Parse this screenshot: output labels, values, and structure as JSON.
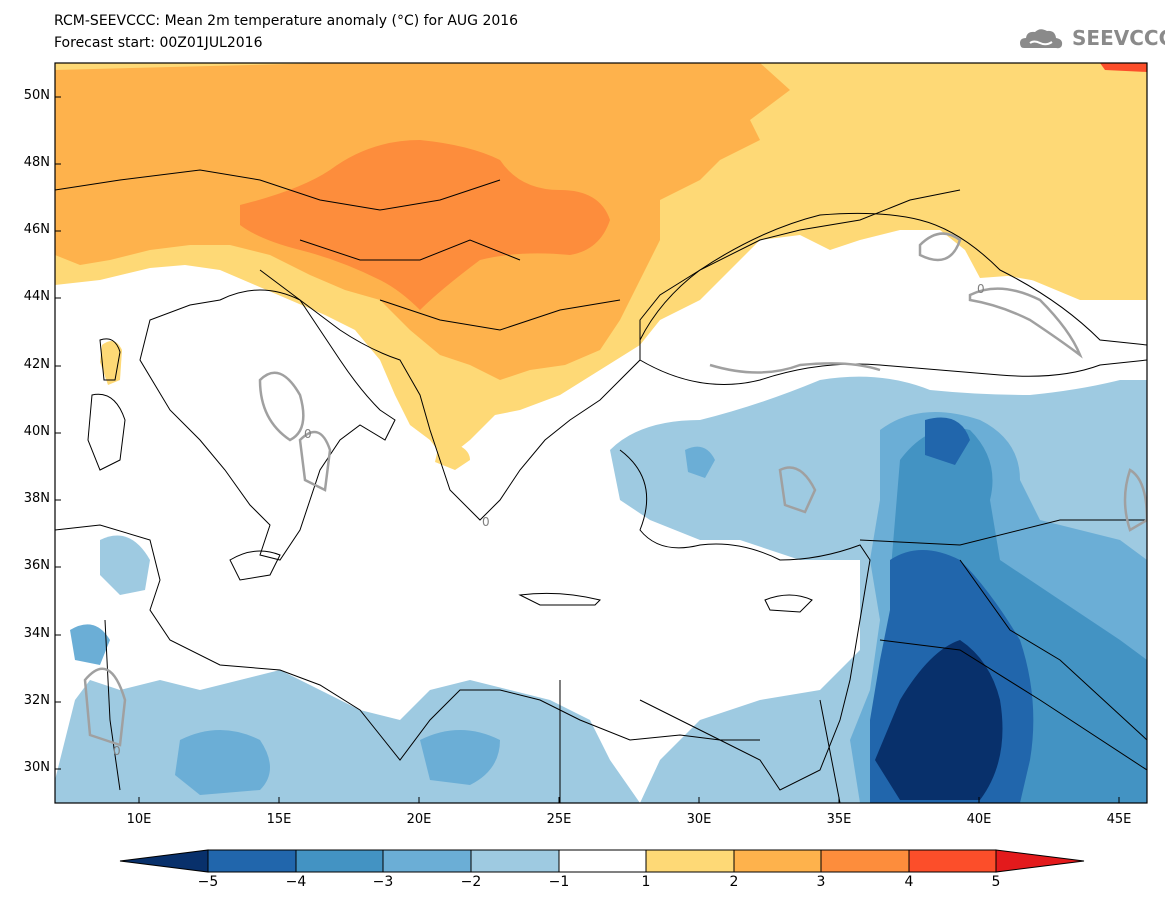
{
  "header": {
    "title": "RCM-SEEVCCC: Mean 2m temperature anomaly (°C) for AUG 2016",
    "subtitle": "Forecast start: 00Z01JUL2016"
  },
  "logo": {
    "text": "SEEVCCC",
    "icon": "cloud-icon",
    "color": "#8a8a8a"
  },
  "map": {
    "variable": "Mean 2m temperature anomaly",
    "units": "°C",
    "lon_range": [
      7,
      46
    ],
    "lat_range": [
      29,
      51
    ],
    "lat_ticks": [
      "50N",
      "48N",
      "46N",
      "44N",
      "42N",
      "40N",
      "38N",
      "36N",
      "34N",
      "32N",
      "30N"
    ],
    "lon_ticks": [
      "10E",
      "15E",
      "20E",
      "25E",
      "30E",
      "35E",
      "40E",
      "45E"
    ],
    "contour_color": "#a0a0a0",
    "contour_labels": [
      "0",
      "0",
      "0",
      "0"
    ]
  },
  "colorbar": {
    "levels": [
      "−5",
      "−4",
      "−3",
      "−2",
      "−1",
      "1",
      "2",
      "3",
      "4",
      "5"
    ],
    "colors": [
      "#08306b",
      "#2166ac",
      "#4393c3",
      "#6baed6",
      "#9ecae1",
      "#ffffff",
      "#fed976",
      "#feb24c",
      "#fd8d3c",
      "#fc4e2a",
      "#e31a1c"
    ]
  }
}
